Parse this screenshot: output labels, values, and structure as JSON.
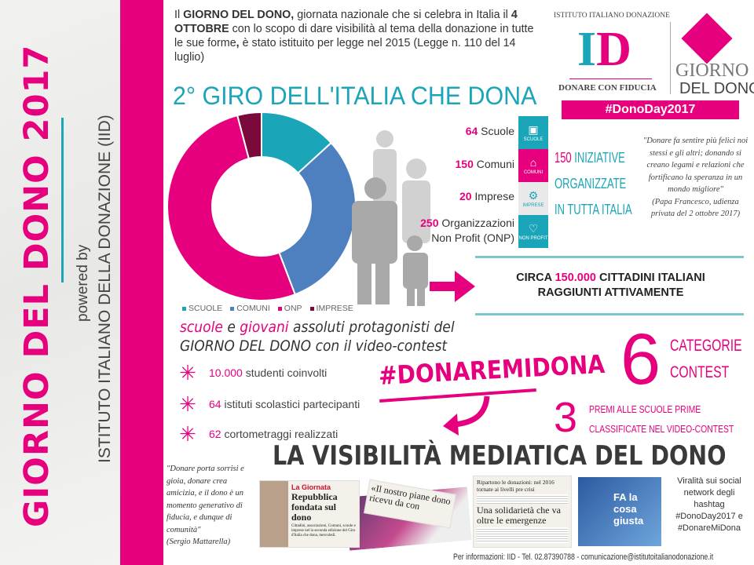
{
  "colors": {
    "pink": "#e6007e",
    "teal": "#1aa5b8",
    "blue": "#4e80c0",
    "dark": "#7a0a3c"
  },
  "sidebar": {
    "title": "GIORNO DEL DONO 2017",
    "powered": "powered by",
    "org": "ISTITUTO ITALIANO DELLA DONAZIONE (IID)"
  },
  "intro": {
    "p1": "Il ",
    "b1": "GIORNO DEL DONO,",
    "p2": " giornata nazionale che si celebra in Italia il ",
    "b2": "4 OTTOBRE",
    "p3": " con lo scopo di dare visibilità al tema della donazione in tutte le sue forme",
    "b3": ",",
    "p4": " è stato istituito per legge nel 2015 (Legge n. 110 del 14 luglio)"
  },
  "main_title": "2° GIRO DELL'ITALIA CHE DONA",
  "logo": {
    "arc": "ISTITUTO ITALIANO DONAZIONE",
    "letters": "ID",
    "tagline": "DONARE CON FIDUCIA",
    "giorno": "GIORNO",
    "del_dono": "DEL DONO",
    "hashtag": "#DonoDay2017"
  },
  "chart_data": {
    "type": "pie",
    "donut": true,
    "categories": [
      "SCUOLE",
      "COMUNI",
      "ONP",
      "IMPRESE"
    ],
    "values": [
      64,
      150,
      250,
      20
    ],
    "colors": [
      "#1aa5b8",
      "#4e80c0",
      "#e6007e",
      "#7a0a3c"
    ],
    "legend": "bottom"
  },
  "stats": [
    {
      "n": "64",
      "label": " Scuole"
    },
    {
      "n": "150",
      "label": " Comuni"
    },
    {
      "n": "20",
      "label": " Imprese"
    },
    {
      "n": "250",
      "label": " Organizzazioni",
      "label2": "Non Profit (ONP)"
    }
  ],
  "categories_icons": [
    {
      "icon": "book-icon",
      "label": "SCUOLE",
      "color": "#1aa5b8"
    },
    {
      "icon": "building-icon",
      "label": "COMUNI",
      "color": "#e6007e"
    },
    {
      "icon": "gears-icon",
      "label": "IMPRESE",
      "color": "#e9e9e9"
    },
    {
      "icon": "heart-icon",
      "label": "NON PROFIT",
      "color": "#1aa5b8"
    }
  ],
  "iniziative": {
    "n": "150",
    "l1": " INIZIATIVE",
    "l2": "ORGANIZZATE",
    "l3": "IN TUTTA ITALIA"
  },
  "papa_quote": {
    "text": "\"Donare fa sentire più felici noi stessi e gli altri; donando si creano legami e relazioni che fortificano la speranza in un mondo migliore\"",
    "author": "(Papa Francesco, udienza privata del 2 ottobre 2017)"
  },
  "cittadini": {
    "pre": "CIRCA ",
    "n": "150.000",
    "post": " CITTADINI ITALIANI",
    "l2": "RAGGIUNTI ATTIVAMENTE"
  },
  "protag": {
    "w1": "scuole",
    "w2": " e ",
    "w3": "giovani",
    "w4": " assoluti protagonisti del",
    "l2": "GIORNO DEL DONO con il video-contest"
  },
  "bullets": [
    {
      "n": "10.000",
      "text": " studenti coinvolti"
    },
    {
      "n": "64",
      "text": " istituti scolastici partecipanti"
    },
    {
      "n": "62",
      "text": " cortometraggi realizzati"
    }
  ],
  "contest": {
    "hashtag": "#DONAREMIDONA",
    "six": "6",
    "cat1": "CATEGORIE",
    "cat2": "CONTEST",
    "three": "3",
    "premi1": "PREMI ALLE SCUOLE PRIME",
    "premi2": "CLASSIFICATE NEL VIDEO-CONTEST"
  },
  "media": {
    "title": "LA VISIBILITÀ MEDIATICA DEL DONO",
    "mattarella_quote": "\"Donare porta sorrisi e gioia, donare crea amicizia, e il dono è un momento generativo di fiducia, e dunque di comunità\"",
    "mattarella_author": "(Sergio Mattarella)",
    "clip1_kicker": "La Giornata",
    "clip1_head": "Repubblica fondata sul dono",
    "clip1_body": "Cittadini, associazioni, Comuni, scuole e imprese nel la seconda edizione del Giro d'Italia che dona, mercoledì.",
    "clip2_head": "«Il nostro piane dono ricevu da con",
    "clip3_head": "Ripartono le donazioni: nel 2016 tornate ai livelli pre crisi",
    "clip4_head": "Una solidarietà che va oltre le emergenze",
    "clip5_head": "FA la cosa giusta",
    "viral": "Viralità sui social network degli hashtag #DonoDay2017 e #DonareMiDona"
  },
  "footer": "Per informazioni: IID - Tel. 02.87390788 - comunicazione@istitutoitalianodonazione.it"
}
